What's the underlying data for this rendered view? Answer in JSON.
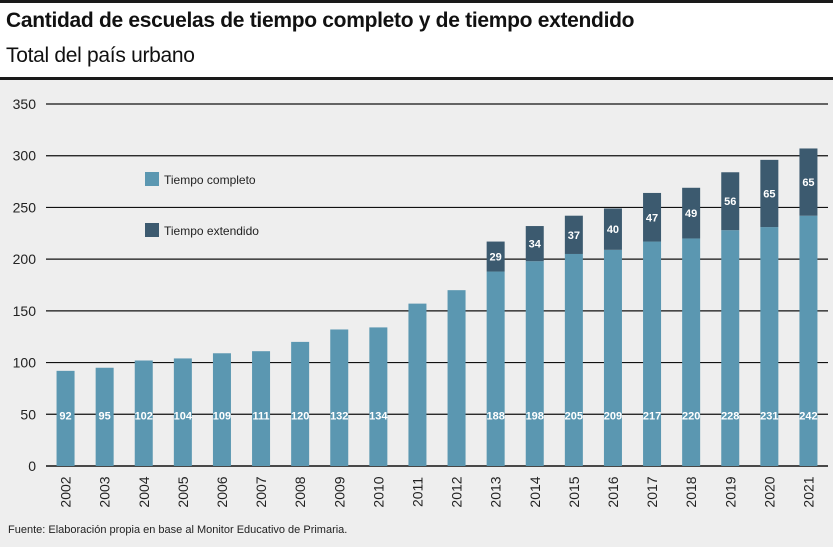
{
  "title": "Cantidad de escuelas de tiempo completo y de tiempo extendido",
  "subtitle": "Total del país urbano",
  "source": "Fuente: Elaboración propia en base al Monitor Educativo de Primaria.",
  "colors": {
    "tiempo_completo": "#5b97b1",
    "tiempo_extendido": "#3c5a6f",
    "background": "#eeeeee"
  },
  "chart_data": {
    "type": "bar",
    "stacked": true,
    "title": "Cantidad de escuelas de tiempo completo y de tiempo extendido",
    "subtitle": "Total del país urbano",
    "xlabel": "",
    "ylabel": "",
    "ylim": [
      0,
      350
    ],
    "yticks": [
      0,
      50,
      100,
      150,
      200,
      250,
      300,
      350
    ],
    "grid": true,
    "legend_position": "top-left",
    "categories": [
      "2002",
      "2003",
      "2004",
      "2005",
      "2006",
      "2007",
      "2008",
      "2009",
      "2010",
      "2011",
      "2012",
      "2013",
      "2014",
      "2015",
      "2016",
      "2017",
      "2018",
      "2019",
      "2020",
      "2021"
    ],
    "series": [
      {
        "name": "Tiempo completo",
        "values": [
          92,
          95,
          102,
          104,
          109,
          111,
          120,
          132,
          134,
          157,
          170,
          188,
          198,
          205,
          209,
          217,
          220,
          228,
          231,
          242
        ],
        "show_labels": [
          true,
          true,
          true,
          true,
          true,
          true,
          true,
          true,
          true,
          false,
          false,
          true,
          true,
          true,
          true,
          true,
          true,
          true,
          true,
          true
        ]
      },
      {
        "name": "Tiempo extendido",
        "values": [
          null,
          null,
          null,
          null,
          null,
          null,
          null,
          null,
          null,
          null,
          null,
          29,
          34,
          37,
          40,
          47,
          49,
          56,
          65,
          65
        ],
        "show_labels": [
          false,
          false,
          false,
          false,
          false,
          false,
          false,
          false,
          false,
          false,
          false,
          true,
          true,
          true,
          true,
          true,
          true,
          true,
          true,
          true
        ]
      }
    ]
  }
}
